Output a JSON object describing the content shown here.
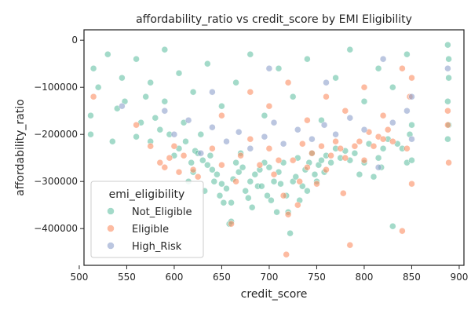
{
  "chart_data": {
    "type": "scatter",
    "title": "affordability_ratio vs credit_score by EMI Eligibility",
    "xlabel": "credit_score",
    "ylabel": "affordability_ratio",
    "xlim": [
      505,
      905
    ],
    "ylim": [
      -478000,
      22000
    ],
    "xticks": [
      500,
      550,
      600,
      650,
      700,
      750,
      800,
      850,
      900
    ],
    "xtick_labels": [
      "500",
      "550",
      "600",
      "650",
      "700",
      "750",
      "800",
      "850",
      "900"
    ],
    "yticks": [
      0,
      -100000,
      -200000,
      -300000,
      -400000
    ],
    "ytick_labels": [
      "0",
      "−100000",
      "−200000",
      "−300000",
      "−400000"
    ],
    "grid": false,
    "legend": {
      "title": "emi_eligibility",
      "placement": "lower-left"
    },
    "series": [
      {
        "name": "Not_Eligible",
        "color": "#66c2a5",
        "points": [
          [
            512,
            -200000
          ],
          [
            512,
            -160000
          ],
          [
            520,
            -100000
          ],
          [
            535,
            -215000
          ],
          [
            540,
            -145000
          ],
          [
            548,
            -130000
          ],
          [
            560,
            -205000
          ],
          [
            565,
            -175000
          ],
          [
            570,
            -120000
          ],
          [
            575,
            -215000
          ],
          [
            580,
            -165000
          ],
          [
            585,
            -190000
          ],
          [
            590,
            -130000
          ],
          [
            595,
            -200000
          ],
          [
            600,
            -245000
          ],
          [
            605,
            -230000
          ],
          [
            610,
            -175000
          ],
          [
            612,
            -215000
          ],
          [
            615,
            -300000
          ],
          [
            618,
            -260000
          ],
          [
            620,
            -280000
          ],
          [
            622,
            -235000
          ],
          [
            625,
            -240000
          ],
          [
            628,
            -200000
          ],
          [
            630,
            -255000
          ],
          [
            632,
            -320000
          ],
          [
            635,
            -265000
          ],
          [
            638,
            -245000
          ],
          [
            640,
            -275000
          ],
          [
            642,
            -300000
          ],
          [
            645,
            -285000
          ],
          [
            648,
            -330000
          ],
          [
            650,
            -305000
          ],
          [
            652,
            -345000
          ],
          [
            655,
            -315000
          ],
          [
            658,
            -390000
          ],
          [
            660,
            -385000
          ],
          [
            660,
            -345000
          ],
          [
            662,
            -295000
          ],
          [
            665,
            -260000
          ],
          [
            668,
            -280000
          ],
          [
            670,
            -240000
          ],
          [
            672,
            -270000
          ],
          [
            675,
            -320000
          ],
          [
            678,
            -335000
          ],
          [
            680,
            -300000
          ],
          [
            682,
            -355000
          ],
          [
            685,
            -285000
          ],
          [
            688,
            -310000
          ],
          [
            690,
            -275000
          ],
          [
            692,
            -310000
          ],
          [
            695,
            -260000
          ],
          [
            698,
            -330000
          ],
          [
            700,
            -270000
          ],
          [
            702,
            -340000
          ],
          [
            705,
            -300000
          ],
          [
            708,
            -365000
          ],
          [
            710,
            -280000
          ],
          [
            712,
            -305000
          ],
          [
            715,
            -260000
          ],
          [
            718,
            -330000
          ],
          [
            720,
            -365000
          ],
          [
            722,
            -410000
          ],
          [
            725,
            -300000
          ],
          [
            728,
            -290000
          ],
          [
            730,
            -250000
          ],
          [
            732,
            -340000
          ],
          [
            735,
            -310000
          ],
          [
            738,
            -275000
          ],
          [
            740,
            -320000
          ],
          [
            742,
            -260000
          ],
          [
            745,
            -240000
          ],
          [
            748,
            -285000
          ],
          [
            750,
            -300000
          ],
          [
            752,
            -265000
          ],
          [
            755,
            -255000
          ],
          [
            758,
            -280000
          ],
          [
            760,
            -245000
          ],
          [
            765,
            -260000
          ],
          [
            770,
            -230000
          ],
          [
            775,
            -250000
          ],
          [
            780,
            -235000
          ],
          [
            785,
            -255000
          ],
          [
            790,
            -240000
          ],
          [
            795,
            -285000
          ],
          [
            800,
            -260000
          ],
          [
            805,
            -220000
          ],
          [
            810,
            -290000
          ],
          [
            815,
            -250000
          ],
          [
            818,
            -270000
          ],
          [
            820,
            -230000
          ],
          [
            825,
            -210000
          ],
          [
            830,
            -395000
          ],
          [
            835,
            -220000
          ],
          [
            840,
            -230000
          ],
          [
            845,
            -260000
          ],
          [
            848,
            -200000
          ],
          [
            850,
            -255000
          ],
          [
            850,
            -180000
          ],
          [
            515,
            -60000
          ],
          [
            530,
            -30000
          ],
          [
            545,
            -80000
          ],
          [
            560,
            -40000
          ],
          [
            575,
            -90000
          ],
          [
            590,
            -20000
          ],
          [
            605,
            -70000
          ],
          [
            620,
            -110000
          ],
          [
            635,
            -50000
          ],
          [
            650,
            -140000
          ],
          [
            665,
            -90000
          ],
          [
            680,
            -30000
          ],
          [
            695,
            -160000
          ],
          [
            710,
            -60000
          ],
          [
            725,
            -120000
          ],
          [
            740,
            -40000
          ],
          [
            755,
            -170000
          ],
          [
            770,
            -80000
          ],
          [
            785,
            -20000
          ],
          [
            800,
            -130000
          ],
          [
            815,
            -60000
          ],
          [
            830,
            -100000
          ],
          [
            845,
            -30000
          ],
          [
            888,
            -10000
          ],
          [
            889,
            -40000
          ],
          [
            889,
            -80000
          ],
          [
            888,
            -130000
          ],
          [
            889,
            -180000
          ],
          [
            888,
            -210000
          ]
        ]
      },
      {
        "name": "Eligible",
        "color": "#fc8d62",
        "points": [
          [
            515,
            -120000
          ],
          [
            560,
            -180000
          ],
          [
            575,
            -225000
          ],
          [
            585,
            -260000
          ],
          [
            590,
            -270000
          ],
          [
            595,
            -250000
          ],
          [
            600,
            -225000
          ],
          [
            605,
            -280000
          ],
          [
            610,
            -245000
          ],
          [
            620,
            -275000
          ],
          [
            625,
            -290000
          ],
          [
            640,
            -230000
          ],
          [
            650,
            -265000
          ],
          [
            660,
            -390000
          ],
          [
            665,
            -300000
          ],
          [
            670,
            -245000
          ],
          [
            680,
            -210000
          ],
          [
            690,
            -265000
          ],
          [
            700,
            -230000
          ],
          [
            705,
            -285000
          ],
          [
            710,
            -255000
          ],
          [
            715,
            -330000
          ],
          [
            718,
            -455000
          ],
          [
            720,
            -370000
          ],
          [
            725,
            -255000
          ],
          [
            730,
            -350000
          ],
          [
            732,
            -300000
          ],
          [
            735,
            -220000
          ],
          [
            740,
            -270000
          ],
          [
            745,
            -240000
          ],
          [
            750,
            -305000
          ],
          [
            755,
            -225000
          ],
          [
            760,
            -275000
          ],
          [
            765,
            -245000
          ],
          [
            770,
            -215000
          ],
          [
            775,
            -230000
          ],
          [
            778,
            -325000
          ],
          [
            780,
            -250000
          ],
          [
            785,
            -435000
          ],
          [
            790,
            -225000
          ],
          [
            795,
            -215000
          ],
          [
            800,
            -255000
          ],
          [
            805,
            -195000
          ],
          [
            810,
            -225000
          ],
          [
            815,
            -205000
          ],
          [
            820,
            -210000
          ],
          [
            825,
            -190000
          ],
          [
            830,
            -215000
          ],
          [
            840,
            -405000
          ],
          [
            845,
            -230000
          ],
          [
            850,
            -305000
          ],
          [
            888,
            -150000
          ],
          [
            888,
            -180000
          ],
          [
            889,
            -260000
          ],
          [
            780,
            -150000
          ],
          [
            760,
            -120000
          ],
          [
            740,
            -170000
          ],
          [
            720,
            -90000
          ],
          [
            700,
            -140000
          ],
          [
            680,
            -110000
          ],
          [
            650,
            -160000
          ],
          [
            800,
            -100000
          ],
          [
            820,
            -160000
          ],
          [
            840,
            -60000
          ],
          [
            848,
            -120000
          ],
          [
            850,
            -80000
          ]
        ]
      },
      {
        "name": "High_Risk",
        "color": "#8da0cb",
        "points": [
          [
            600,
            -200000
          ],
          [
            615,
            -170000
          ],
          [
            628,
            -240000
          ],
          [
            640,
            -185000
          ],
          [
            655,
            -215000
          ],
          [
            668,
            -195000
          ],
          [
            680,
            -230000
          ],
          [
            695,
            -205000
          ],
          [
            705,
            -175000
          ],
          [
            715,
            -220000
          ],
          [
            730,
            -190000
          ],
          [
            745,
            -210000
          ],
          [
            758,
            -180000
          ],
          [
            770,
            -200000
          ],
          [
            785,
            -165000
          ],
          [
            800,
            -190000
          ],
          [
            815,
            -270000
          ],
          [
            830,
            -175000
          ],
          [
            845,
            -150000
          ],
          [
            850,
            -210000
          ],
          [
            850,
            -120000
          ],
          [
            700,
            -60000
          ],
          [
            760,
            -90000
          ],
          [
            820,
            -40000
          ],
          [
            640,
            -110000
          ],
          [
            590,
            -150000
          ],
          [
            545,
            -140000
          ],
          [
            888,
            -60000
          ]
        ]
      }
    ]
  }
}
